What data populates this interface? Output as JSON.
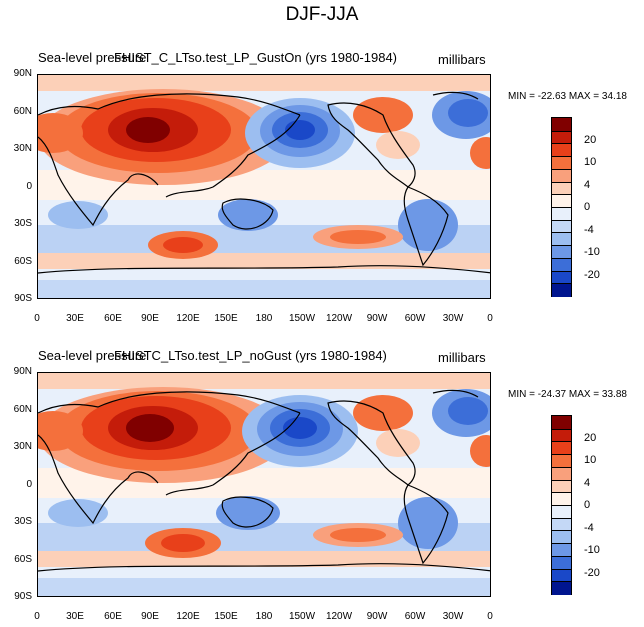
{
  "title": "DJF-JJA",
  "panels": [
    {
      "variable": "Sea-level pressure",
      "case": "FHIST_C_LTso.test_LP_GustOn (yrs 1980-1984)",
      "units": "millibars",
      "stats": "MIN = -22.63 MAX =  34.18"
    },
    {
      "variable": "Sea-level pressure",
      "case": "FHISTC_LTso.test_LP_noGust (yrs 1980-1984)",
      "units": "millibars",
      "stats": "MIN = -24.37 MAX =  33.88"
    }
  ],
  "lat_ticks": [
    "90N",
    "60N",
    "30N",
    "0",
    "30S",
    "60S",
    "90S"
  ],
  "lon_ticks": [
    "0",
    "30E",
    "60E",
    "90E",
    "120E",
    "150E",
    "180",
    "150W",
    "120W",
    "90W",
    "60W",
    "30W",
    "0"
  ],
  "colorbar": {
    "labels": [
      "20",
      "10",
      "4",
      "0",
      "-4",
      "-10",
      "-20"
    ],
    "colors": [
      "#800000",
      "#c41c0a",
      "#e8401a",
      "#f4703c",
      "#f9a07c",
      "#fcd0b8",
      "#fff3ea",
      "#e8f0fb",
      "#c4d8f6",
      "#9cbef0",
      "#6d98e6",
      "#3c6ed8",
      "#1a48c8",
      "#00158f"
    ]
  },
  "chart_data": [
    {
      "type": "heatmap",
      "title": "Sea-level pressure FHIST_C_LTso.test_LP_GustOn (yrs 1980-1984)",
      "field": "DJF minus JJA sea-level pressure",
      "units": "millibars",
      "min": -22.63,
      "max": 34.18,
      "x_range": [
        0,
        360
      ],
      "y_range": [
        -90,
        90
      ],
      "contour_levels": [
        -20,
        -15,
        -10,
        -8,
        -6,
        -4,
        -2,
        0,
        2,
        4,
        6,
        8,
        10,
        15,
        20
      ]
    },
    {
      "type": "heatmap",
      "title": "Sea-level pressure FHISTC_LTso.test_LP_noGust (yrs 1980-1984)",
      "field": "DJF minus JJA sea-level pressure",
      "units": "millibars",
      "min": -24.37,
      "max": 33.88,
      "x_range": [
        0,
        360
      ],
      "y_range": [
        -90,
        90
      ],
      "contour_levels": [
        -20,
        -15,
        -10,
        -8,
        -6,
        -4,
        -2,
        0,
        2,
        4,
        6,
        8,
        10,
        15,
        20
      ]
    }
  ]
}
